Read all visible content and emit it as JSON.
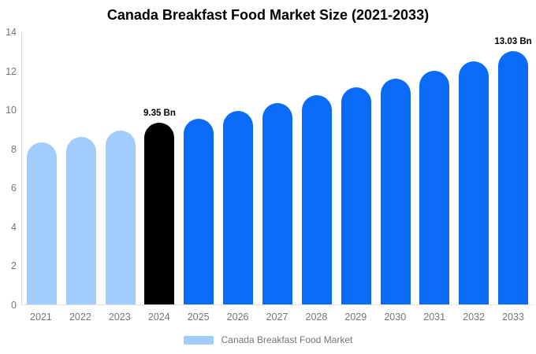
{
  "title": "Canada Breakfast Food Market Size (2021-2033)",
  "legend": {
    "label": "Canada Breakfast Food Market",
    "swatch_color": "#A2CCFB"
  },
  "colors": {
    "historical_bar": "#A2CCFB",
    "base_year_bar": "#000000",
    "forecast_bar": "#0A6BF6",
    "axis_text": "#757575",
    "axis_line": "#D6D6D6",
    "baseline": "#E2E2E2",
    "title_text": "#000000",
    "data_label_text": "#000000"
  },
  "chart_data": {
    "type": "bar",
    "title": "Canada Breakfast Food Market Size (2021-2033)",
    "categories": [
      "2021",
      "2022",
      "2023",
      "2024",
      "2025",
      "2026",
      "2027",
      "2028",
      "2029",
      "2030",
      "2031",
      "2032",
      "2033"
    ],
    "values": [
      8.35,
      8.6,
      8.95,
      9.35,
      9.55,
      9.95,
      10.35,
      10.75,
      11.15,
      11.6,
      12.0,
      12.5,
      13.03
    ],
    "unit": "Bn",
    "bar_colors": [
      "#A2CCFB",
      "#A2CCFB",
      "#A2CCFB",
      "#000000",
      "#0A6BF6",
      "#0A6BF6",
      "#0A6BF6",
      "#0A6BF6",
      "#0A6BF6",
      "#0A6BF6",
      "#0A6BF6",
      "#0A6BF6",
      "#0A6BF6"
    ],
    "bar_labels": [
      null,
      null,
      null,
      "9.35 Bn",
      null,
      null,
      null,
      null,
      null,
      null,
      null,
      null,
      "13.03 Bn"
    ],
    "xlabel": "",
    "ylabel": "",
    "ylim": [
      0,
      14
    ],
    "yticks": [
      0,
      2,
      4,
      6,
      8,
      10,
      12,
      14
    ],
    "grid": false,
    "legend_position": "bottom",
    "legend_entries": [
      "Canada Breakfast Food Market"
    ]
  }
}
